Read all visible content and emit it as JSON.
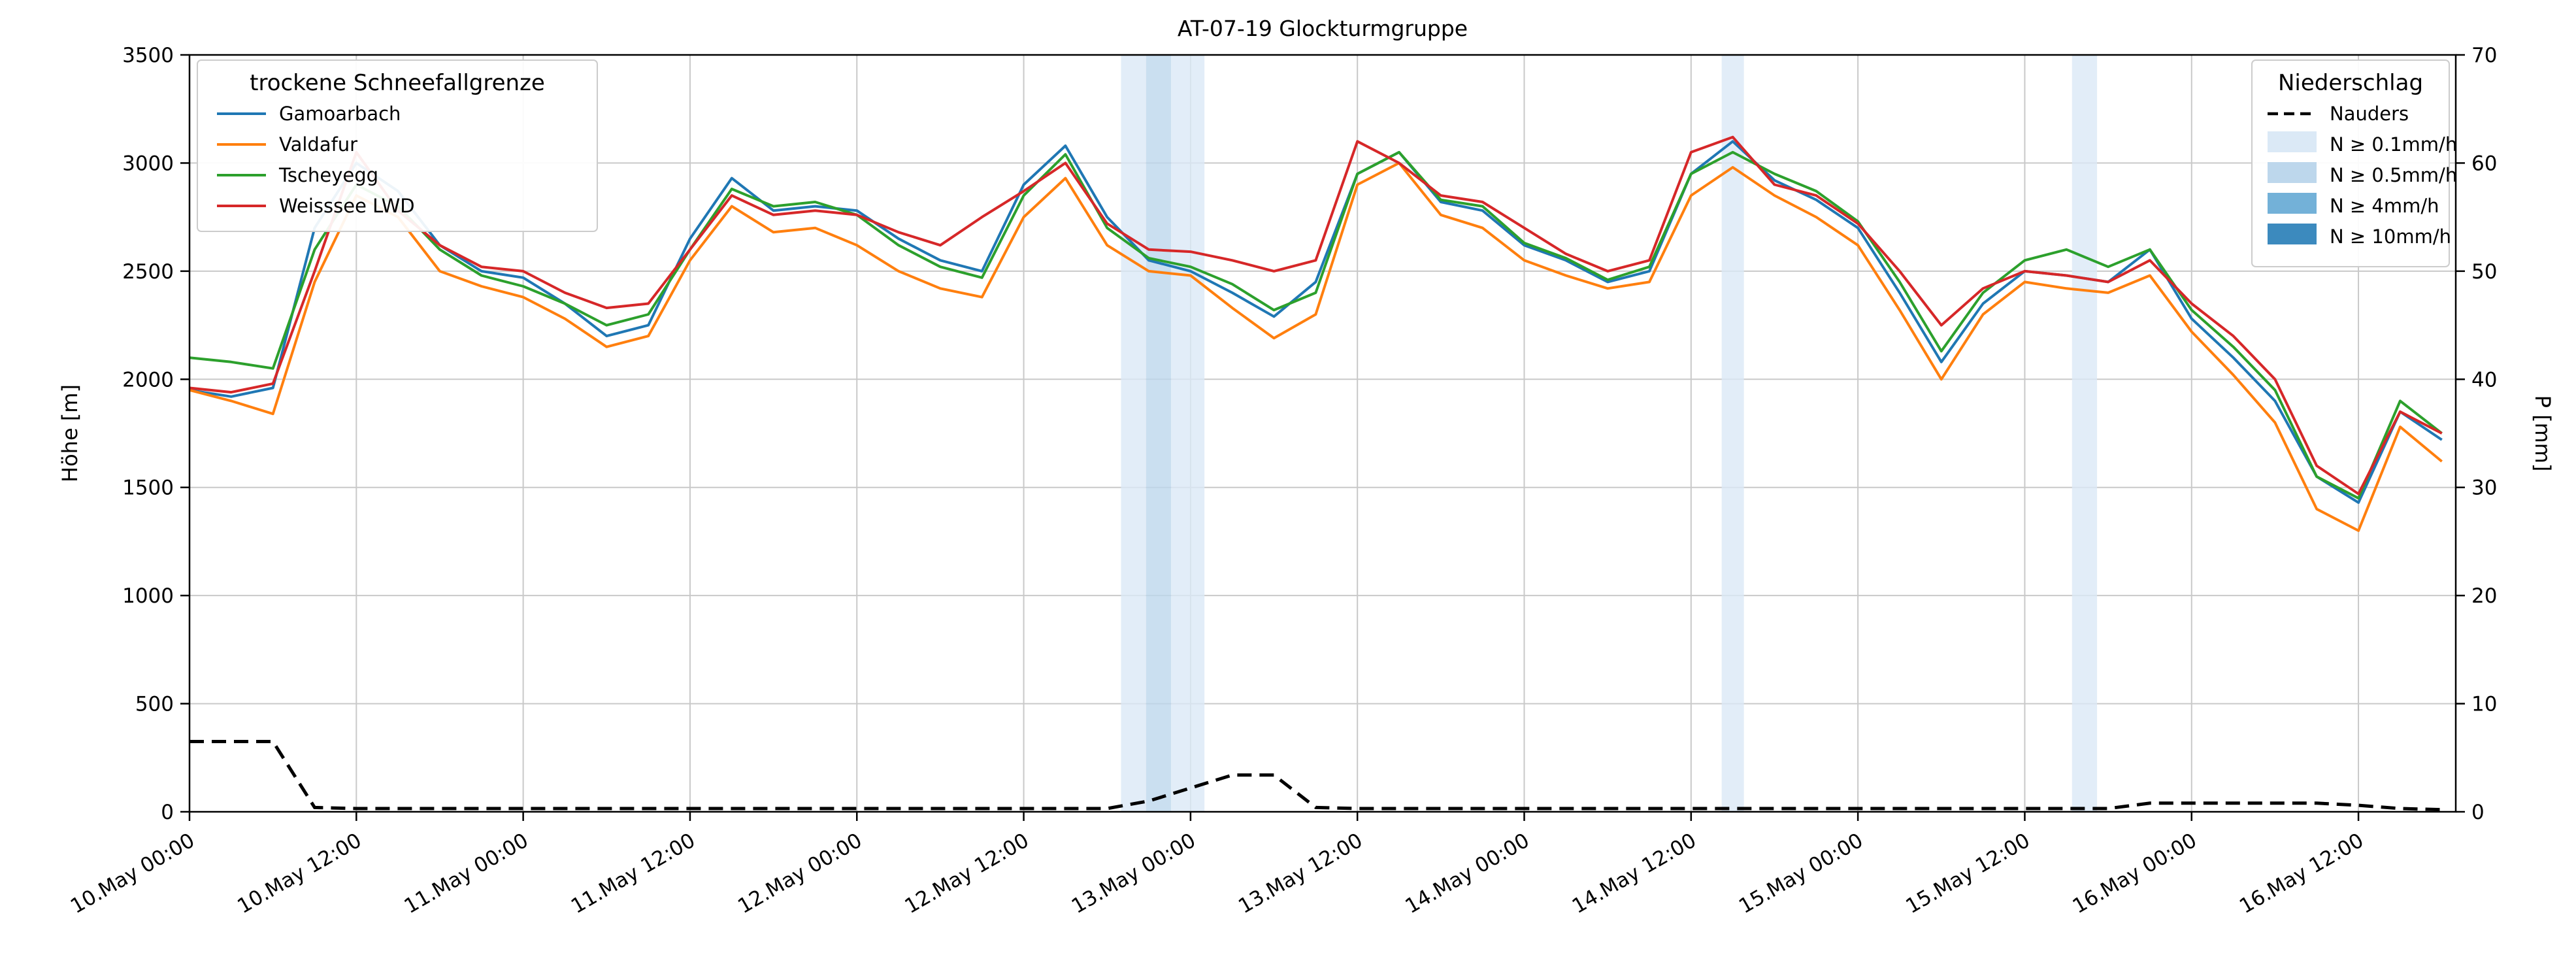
{
  "chart_data": {
    "type": "line",
    "title": "AT-07-19 Glockturmgruppe",
    "ylabel_left": "Höhe [m]",
    "ylabel_right": "P [mm]",
    "ylim_left": [
      0,
      3500
    ],
    "ylim_right": [
      0,
      70
    ],
    "xlim_hours": [
      0,
      163
    ],
    "x_ticks": [
      {
        "h": 0,
        "label": "10.May 00:00"
      },
      {
        "h": 12,
        "label": "10.May 12:00"
      },
      {
        "h": 24,
        "label": "11.May 00:00"
      },
      {
        "h": 36,
        "label": "11.May 12:00"
      },
      {
        "h": 48,
        "label": "12.May 00:00"
      },
      {
        "h": 60,
        "label": "12.May 12:00"
      },
      {
        "h": 72,
        "label": "13.May 00:00"
      },
      {
        "h": 84,
        "label": "13.May 12:00"
      },
      {
        "h": 96,
        "label": "14.May 00:00"
      },
      {
        "h": 108,
        "label": "14.May 12:00"
      },
      {
        "h": 120,
        "label": "15.May 00:00"
      },
      {
        "h": 132,
        "label": "15.May 12:00"
      },
      {
        "h": 144,
        "label": "16.May 00:00"
      },
      {
        "h": 156,
        "label": "16.May 12:00"
      }
    ],
    "y_ticks_left": [
      0,
      500,
      1000,
      1500,
      2000,
      2500,
      3000,
      3500
    ],
    "y_ticks_right": [
      0,
      10,
      20,
      30,
      40,
      50,
      60,
      70
    ],
    "sample_start_hour": 0,
    "sample_step_hours": 3,
    "legend_left_title": "trockene Schneefallgrenze",
    "legend_right_title": "Niederschlag",
    "grid_color": "#c9c9c9",
    "background": "#ffffff",
    "series": [
      {
        "name": "Gamoarbach",
        "color": "#1f77b4",
        "values": [
          1950,
          1920,
          1960,
          2700,
          3000,
          2870,
          2620,
          2500,
          2470,
          2350,
          2200,
          2250,
          2650,
          2930,
          2780,
          2800,
          2780,
          2650,
          2550,
          2500,
          2900,
          3080,
          2750,
          2550,
          2500,
          2400,
          2290,
          2450,
          2950,
          3050,
          2820,
          2780,
          2620,
          2550,
          2450,
          2500,
          2950,
          3100,
          2920,
          2830,
          2700,
          2400,
          2080,
          2350,
          2500,
          2480,
          2450,
          2600,
          2280,
          2100,
          1900,
          1550,
          1430,
          1850,
          1720
        ]
      },
      {
        "name": "Valdafur",
        "color": "#ff7f0e",
        "values": [
          1950,
          1900,
          1840,
          2450,
          2850,
          2750,
          2500,
          2430,
          2380,
          2280,
          2150,
          2200,
          2550,
          2800,
          2680,
          2700,
          2620,
          2500,
          2420,
          2380,
          2750,
          2930,
          2620,
          2500,
          2480,
          2330,
          2190,
          2300,
          2900,
          3000,
          2760,
          2700,
          2550,
          2480,
          2420,
          2450,
          2850,
          2980,
          2850,
          2750,
          2620,
          2320,
          2000,
          2300,
          2450,
          2420,
          2400,
          2480,
          2220,
          2020,
          1800,
          1400,
          1300,
          1780,
          1620
        ]
      },
      {
        "name": "Tscheyegg",
        "color": "#2ca02c",
        "values": [
          2100,
          2080,
          2050,
          2600,
          2900,
          2800,
          2600,
          2480,
          2430,
          2350,
          2250,
          2300,
          2600,
          2880,
          2800,
          2820,
          2760,
          2620,
          2520,
          2470,
          2850,
          3040,
          2700,
          2560,
          2520,
          2440,
          2320,
          2400,
          2950,
          3050,
          2830,
          2800,
          2630,
          2560,
          2460,
          2520,
          2950,
          3050,
          2950,
          2870,
          2730,
          2450,
          2130,
          2400,
          2550,
          2600,
          2520,
          2600,
          2320,
          2150,
          1950,
          1550,
          1450,
          1900,
          1750
        ]
      },
      {
        "name": "Weisssee LWD",
        "color": "#d62728",
        "values": [
          1960,
          1940,
          1980,
          2500,
          3050,
          2780,
          2620,
          2520,
          2500,
          2400,
          2330,
          2350,
          2600,
          2850,
          2760,
          2780,
          2760,
          2680,
          2620,
          2750,
          2870,
          3000,
          2720,
          2600,
          2590,
          2550,
          2500,
          2550,
          3100,
          3000,
          2850,
          2820,
          2700,
          2580,
          2500,
          2550,
          3050,
          3120,
          2900,
          2850,
          2720,
          2500,
          2250,
          2420,
          2500,
          2480,
          2450,
          2550,
          2350,
          2200,
          2000,
          1600,
          1470,
          1850,
          1750
        ]
      }
    ],
    "precip_line": {
      "name": "Nauders",
      "color": "#000000",
      "axis": "right",
      "values": [
        6.5,
        6.5,
        6.5,
        0.4,
        0.3,
        0.3,
        0.3,
        0.3,
        0.3,
        0.3,
        0.3,
        0.3,
        0.3,
        0.3,
        0.3,
        0.3,
        0.3,
        0.3,
        0.3,
        0.3,
        0.3,
        0.3,
        0.3,
        1.0,
        2.2,
        3.4,
        3.4,
        0.4,
        0.3,
        0.3,
        0.3,
        0.3,
        0.3,
        0.3,
        0.3,
        0.3,
        0.3,
        0.3,
        0.3,
        0.3,
        0.3,
        0.3,
        0.3,
        0.3,
        0.3,
        0.3,
        0.3,
        0.8,
        0.8,
        0.8,
        0.8,
        0.8,
        0.6,
        0.3,
        0.2
      ]
    },
    "precip_bands": [
      {
        "start_hour": 67.0,
        "end_hour": 68.8,
        "level": 0
      },
      {
        "start_hour": 68.8,
        "end_hour": 70.6,
        "level": 1
      },
      {
        "start_hour": 70.6,
        "end_hour": 73.0,
        "level": 0
      },
      {
        "start_hour": 110.2,
        "end_hour": 111.8,
        "level": 0
      },
      {
        "start_hour": 135.4,
        "end_hour": 137.2,
        "level": 0
      }
    ],
    "band_levels": [
      {
        "label": "N ≥ 0.1mm/h",
        "color": "#dbe9f6"
      },
      {
        "label": "N ≥ 0.5mm/h",
        "color": "#bdd7ec"
      },
      {
        "label": "N ≥ 4mm/h",
        "color": "#73b1d8"
      },
      {
        "label": "N ≥ 10mm/h",
        "color": "#3c8abe"
      }
    ]
  }
}
